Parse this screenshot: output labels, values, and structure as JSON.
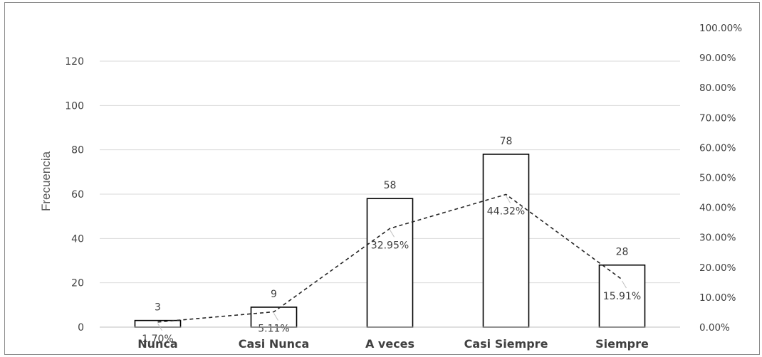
{
  "chart_data": {
    "type": "bar",
    "title": "",
    "xlabel": "",
    "ylabel": "Frecuencia",
    "categories": [
      "Nunca",
      "Casi Nunca",
      "A veces",
      "Casi Siempre",
      "Siempre"
    ],
    "series": [
      {
        "type": "bar",
        "axis": "left",
        "values": [
          3,
          9,
          58,
          78,
          28
        ],
        "data_labels": [
          "3",
          "9",
          "58",
          "78",
          "28"
        ]
      },
      {
        "type": "line",
        "axis": "right",
        "style": "dashed",
        "values": [
          1.7,
          5.11,
          32.95,
          44.32,
          15.91
        ],
        "data_labels": [
          "1.70%",
          "5.11%",
          "32.95%",
          "44.32%",
          "15.91%"
        ]
      }
    ],
    "ylim": [
      0,
      120
    ],
    "y_ticks": [
      "0",
      "20",
      "40",
      "60",
      "80",
      "100",
      "120"
    ],
    "y2lim": [
      0,
      100
    ],
    "y2_ticks": [
      "0.00%",
      "10.00%",
      "20.00%",
      "30.00%",
      "40.00%",
      "50.00%",
      "60.00%",
      "70.00%",
      "80.00%",
      "90.00%",
      "100.00%"
    ],
    "grid": true,
    "legend": "none",
    "colors": {
      "bar_fill": "#ffffff",
      "bar_stroke": "#000000",
      "line": "#262626",
      "grid": "#d9d9d9",
      "text": "#404040"
    }
  }
}
